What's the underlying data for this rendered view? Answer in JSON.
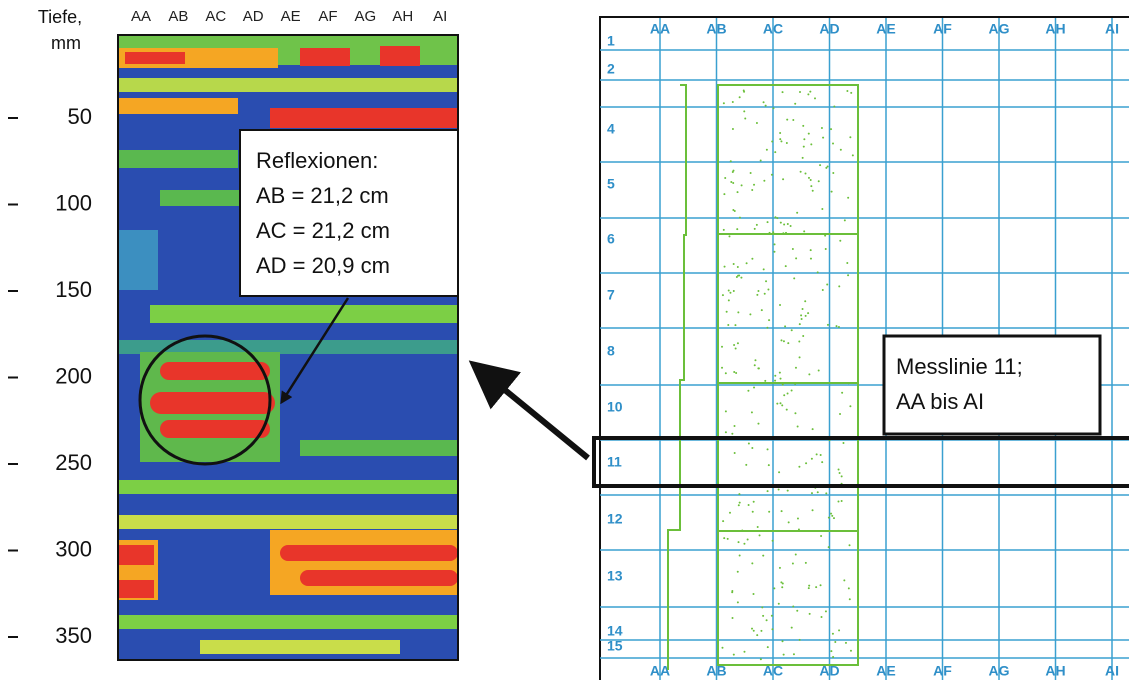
{
  "left_panel": {
    "axis_title": [
      "Tiefe,",
      "mm"
    ],
    "depth_ticks": [
      50,
      100,
      150,
      200,
      250,
      300,
      350
    ],
    "columns": [
      "AA",
      "AB",
      "AC",
      "AD",
      "AE",
      "AF",
      "AG",
      "AH",
      "AI"
    ],
    "annotation": [
      "Reflexionen:",
      "AB = 21,2 cm",
      "AC = 21,2 cm",
      "AD = 20,9 cm"
    ]
  },
  "right_panel": {
    "columns_top": [
      "AA",
      "AB",
      "AC",
      "AD",
      "AE",
      "AF",
      "AG",
      "AH",
      "AI"
    ],
    "columns_bottom": [
      "AA",
      "AB",
      "AC",
      "AD",
      "AE",
      "AF",
      "AG",
      "AH",
      "AI"
    ],
    "row_labels": [
      "1",
      "2",
      "4",
      "5",
      "6",
      "7",
      "8",
      "10",
      "11",
      "12",
      "13",
      "14",
      "15"
    ],
    "annotation": [
      "Messlinie 11;",
      "AA bis AI"
    ]
  }
}
